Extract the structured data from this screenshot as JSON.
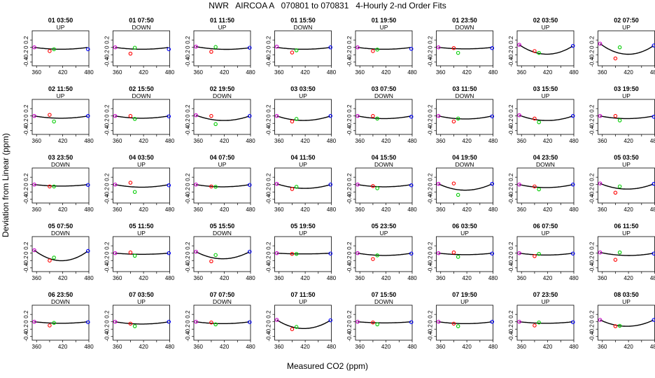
{
  "title": "NWR   AIRCOA A   070801 to 070831   4-Hourly 2-nd Order Fits",
  "xlabel": "Measured CO2 (ppm)",
  "ylabel": "Deviation from Linear (ppm)",
  "colors": {
    "curve": "#000000",
    "measured_low": "#ff0000",
    "measured_mid": "#00cc00",
    "endpoint": "#0000ff",
    "ref": "#cc00cc"
  },
  "chart_data": {
    "type": "scatter",
    "layout": "grid-5x8",
    "xlim": [
      350,
      480
    ],
    "ylim": [
      -0.5,
      0.45
    ],
    "x_ticks": [
      360,
      420,
      480
    ],
    "x_minor_ticks": [
      390,
      450
    ],
    "y_ticks": [
      0.2,
      0,
      -0.2,
      -0.4
    ],
    "y_tick_labels": [
      "0.2",
      "0",
      "-0.2",
      "-0.4"
    ],
    "panels": [
      {
        "title": "01 03:50",
        "dir": "UP",
        "curve": [
          0,
          -0.05,
          0
        ],
        "points": [
          [
            355,
            0
          ],
          [
            390,
            -0.1
          ],
          [
            400,
            -0.05
          ],
          [
            478,
            -0.05
          ]
        ]
      },
      {
        "title": "01 07:50",
        "dir": "DOWN",
        "curve": [
          0,
          -0.05,
          0
        ],
        "points": [
          [
            355,
            0
          ],
          [
            390,
            -0.17
          ],
          [
            400,
            -0.01
          ],
          [
            478,
            -0.05
          ]
        ]
      },
      {
        "title": "01 11:50",
        "dir": "UP",
        "curve": [
          0.02,
          -0.05,
          -0.01
        ],
        "points": [
          [
            355,
            0.02
          ],
          [
            390,
            -0.12
          ],
          [
            400,
            0.01
          ],
          [
            478,
            -0.01
          ]
        ]
      },
      {
        "title": "01 15:50",
        "dir": "DOWN",
        "curve": [
          0,
          -0.05,
          0
        ],
        "points": [
          [
            355,
            0.02
          ],
          [
            390,
            -0.14
          ],
          [
            400,
            -0.08
          ],
          [
            478,
            0
          ]
        ]
      },
      {
        "title": "01 19:50",
        "dir": "UP",
        "curve": [
          0,
          -0.05,
          0
        ],
        "points": [
          [
            355,
            0
          ],
          [
            390,
            -0.1
          ],
          [
            400,
            -0.06
          ],
          [
            478,
            -0.04
          ]
        ]
      },
      {
        "title": "01 23:50",
        "dir": "DOWN",
        "curve": [
          0,
          -0.04,
          0
        ],
        "points": [
          [
            355,
            0
          ],
          [
            390,
            -0.02
          ],
          [
            400,
            -0.15
          ],
          [
            478,
            -0.02
          ]
        ]
      },
      {
        "title": "02 03:50",
        "dir": "UP",
        "curve": [
          0.07,
          -0.18,
          0.04
        ],
        "points": [
          [
            355,
            0.07
          ],
          [
            390,
            -0.1
          ],
          [
            400,
            -0.15
          ],
          [
            478,
            0.04
          ]
        ]
      },
      {
        "title": "02 07:50",
        "dir": "UP",
        "curve": [
          0.1,
          -0.18,
          0.05
        ],
        "points": [
          [
            355,
            0.1
          ],
          [
            390,
            -0.3
          ],
          [
            400,
            0
          ],
          [
            478,
            0.05
          ]
        ]
      },
      {
        "title": "02 11:50",
        "dir": "UP",
        "curve": [
          0,
          -0.06,
          0
        ],
        "points": [
          [
            355,
            0
          ],
          [
            390,
            0.03
          ],
          [
            400,
            -0.15
          ],
          [
            478,
            0
          ]
        ]
      },
      {
        "title": "02 15:50",
        "dir": "DOWN",
        "curve": [
          0,
          -0.06,
          0
        ],
        "points": [
          [
            355,
            0
          ],
          [
            390,
            0
          ],
          [
            400,
            -0.08
          ],
          [
            478,
            -0.01
          ]
        ]
      },
      {
        "title": "02 19:50",
        "dir": "DOWN",
        "curve": [
          0.02,
          -0.12,
          0
        ],
        "points": [
          [
            355,
            0.02
          ],
          [
            390,
            0
          ],
          [
            400,
            -0.22
          ],
          [
            478,
            0
          ]
        ]
      },
      {
        "title": "03 03:50",
        "dir": "UP",
        "curve": [
          0,
          -0.12,
          0
        ],
        "points": [
          [
            355,
            0
          ],
          [
            390,
            -0.15
          ],
          [
            400,
            -0.08
          ],
          [
            478,
            0
          ]
        ]
      },
      {
        "title": "03 07:50",
        "dir": "DOWN",
        "curve": [
          0,
          -0.07,
          0
        ],
        "points": [
          [
            355,
            0
          ],
          [
            390,
            0
          ],
          [
            400,
            -0.07
          ],
          [
            478,
            -0.02
          ]
        ]
      },
      {
        "title": "03 11:50",
        "dir": "DOWN",
        "curve": [
          0,
          -0.08,
          0
        ],
        "points": [
          [
            355,
            0
          ],
          [
            390,
            -0.15
          ],
          [
            400,
            -0.07
          ],
          [
            478,
            -0.01
          ]
        ]
      },
      {
        "title": "03 15:50",
        "dir": "UP",
        "curve": [
          0.02,
          -0.12,
          0
        ],
        "points": [
          [
            355,
            0.02
          ],
          [
            390,
            -0.07
          ],
          [
            400,
            -0.17
          ],
          [
            478,
            0
          ]
        ]
      },
      {
        "title": "03 19:50",
        "dir": "UP",
        "curve": [
          0,
          -0.07,
          0
        ],
        "points": [
          [
            355,
            0
          ],
          [
            390,
            0
          ],
          [
            400,
            -0.12
          ],
          [
            478,
            -0.02
          ]
        ]
      },
      {
        "title": "03 23:50",
        "dir": "DOWN",
        "curve": [
          0,
          -0.04,
          0
        ],
        "points": [
          [
            355,
            0
          ],
          [
            390,
            -0.05
          ],
          [
            400,
            -0.05
          ],
          [
            478,
            -0.01
          ]
        ]
      },
      {
        "title": "04 03:50",
        "dir": "UP",
        "curve": [
          0,
          -0.07,
          0
        ],
        "points": [
          [
            355,
            0
          ],
          [
            390,
            0.05
          ],
          [
            400,
            -0.2
          ],
          [
            478,
            -0.02
          ]
        ]
      },
      {
        "title": "04 07:50",
        "dir": "UP",
        "curve": [
          0,
          -0.06,
          0
        ],
        "points": [
          [
            355,
            0
          ],
          [
            390,
            -0.05
          ],
          [
            400,
            -0.06
          ],
          [
            478,
            -0.01
          ]
        ]
      },
      {
        "title": "04 11:50",
        "dir": "UP",
        "curve": [
          0.02,
          -0.1,
          0
        ],
        "points": [
          [
            355,
            0.02
          ],
          [
            390,
            -0.12
          ],
          [
            400,
            -0.06
          ],
          [
            478,
            0
          ]
        ]
      },
      {
        "title": "04 15:50",
        "dir": "DOWN",
        "curve": [
          0,
          -0.06,
          0
        ],
        "points": [
          [
            355,
            0
          ],
          [
            390,
            -0.04
          ],
          [
            400,
            -0.1
          ],
          [
            478,
            -0.02
          ]
        ]
      },
      {
        "title": "04 19:50",
        "dir": "DOWN",
        "curve": [
          0.02,
          -0.15,
          0.02
        ],
        "points": [
          [
            355,
            0.02
          ],
          [
            390,
            0.03
          ],
          [
            400,
            -0.28
          ],
          [
            478,
            0.02
          ]
        ]
      },
      {
        "title": "04 23:50",
        "dir": "DOWN",
        "curve": [
          0,
          -0.08,
          0
        ],
        "points": [
          [
            355,
            0
          ],
          [
            390,
            -0.05
          ],
          [
            400,
            -0.13
          ],
          [
            478,
            0
          ]
        ]
      },
      {
        "title": "05 03:50",
        "dir": "UP",
        "curve": [
          0.03,
          -0.12,
          0.02
        ],
        "points": [
          [
            355,
            0.03
          ],
          [
            390,
            -0.22
          ],
          [
            400,
            -0.05
          ],
          [
            478,
            0.02
          ]
        ]
      },
      {
        "title": "05 07:50",
        "dir": "DOWN",
        "curve": [
          0.08,
          -0.2,
          0.06
        ],
        "points": [
          [
            355,
            0.08
          ],
          [
            390,
            -0.2
          ],
          [
            400,
            -0.12
          ],
          [
            478,
            0.06
          ]
        ]
      },
      {
        "title": "05 11:50",
        "dir": "UP",
        "curve": [
          0,
          -0.03,
          0
        ],
        "points": [
          [
            355,
            0
          ],
          [
            390,
            0.02
          ],
          [
            400,
            -0.07
          ],
          [
            478,
            0
          ]
        ]
      },
      {
        "title": "05 15:50",
        "dir": "DOWN",
        "curve": [
          0.04,
          -0.15,
          0.04
        ],
        "points": [
          [
            355,
            0.04
          ],
          [
            390,
            -0.22
          ],
          [
            400,
            -0.05
          ],
          [
            478,
            0.04
          ]
        ]
      },
      {
        "title": "05 19:50",
        "dir": "UP",
        "curve": [
          0,
          -0.02,
          0
        ],
        "points": [
          [
            355,
            0
          ],
          [
            390,
            -0.02
          ],
          [
            400,
            -0.02
          ],
          [
            478,
            -0.01
          ]
        ]
      },
      {
        "title": "05 23:50",
        "dir": "UP",
        "curve": [
          0,
          -0.06,
          0
        ],
        "points": [
          [
            355,
            0
          ],
          [
            390,
            -0.16
          ],
          [
            400,
            -0.06
          ],
          [
            478,
            -0.01
          ]
        ]
      },
      {
        "title": "06 03:50",
        "dir": "UP",
        "curve": [
          0,
          -0.04,
          0
        ],
        "points": [
          [
            355,
            0
          ],
          [
            390,
            0.02
          ],
          [
            400,
            -0.1
          ],
          [
            478,
            -0.01
          ]
        ]
      },
      {
        "title": "06 07:50",
        "dir": "UP",
        "curve": [
          0,
          -0.05,
          0
        ],
        "points": [
          [
            355,
            0
          ],
          [
            390,
            -0.08
          ],
          [
            400,
            -0.02
          ],
          [
            478,
            -0.01
          ]
        ]
      },
      {
        "title": "06 11:50",
        "dir": "UP",
        "curve": [
          0.02,
          -0.06,
          0
        ],
        "points": [
          [
            355,
            0.02
          ],
          [
            390,
            -0.18
          ],
          [
            400,
            0.02
          ],
          [
            478,
            -0.01
          ]
        ]
      },
      {
        "title": "06 23:50",
        "dir": "DOWN",
        "curve": [
          0,
          -0.04,
          0
        ],
        "points": [
          [
            355,
            0
          ],
          [
            390,
            -0.1
          ],
          [
            400,
            -0.03
          ],
          [
            478,
            -0.01
          ]
        ]
      },
      {
        "title": "07 03:50",
        "dir": "UP",
        "curve": [
          0,
          -0.06,
          0
        ],
        "points": [
          [
            355,
            0
          ],
          [
            390,
            -0.05
          ],
          [
            400,
            -0.12
          ],
          [
            478,
            0
          ]
        ]
      },
      {
        "title": "07 07:50",
        "dir": "DOWN",
        "curve": [
          0,
          -0.05,
          0
        ],
        "points": [
          [
            355,
            0
          ],
          [
            390,
            -0.02
          ],
          [
            400,
            -0.07
          ],
          [
            478,
            -0.01
          ]
        ]
      },
      {
        "title": "07 11:50",
        "dir": "UP",
        "curve": [
          0.05,
          -0.18,
          0.04
        ],
        "points": [
          [
            355,
            0.05
          ],
          [
            390,
            -0.2
          ],
          [
            400,
            -0.14
          ],
          [
            478,
            0.04
          ]
        ]
      },
      {
        "title": "07 15:50",
        "dir": "DOWN",
        "curve": [
          0,
          -0.03,
          0
        ],
        "points": [
          [
            355,
            0
          ],
          [
            390,
            -0.02
          ],
          [
            400,
            -0.07
          ],
          [
            478,
            -0.01
          ]
        ]
      },
      {
        "title": "07 19:50",
        "dir": "UP",
        "curve": [
          0,
          -0.05,
          0
        ],
        "points": [
          [
            355,
            0
          ],
          [
            390,
            -0.05
          ],
          [
            400,
            -0.12
          ],
          [
            478,
            0
          ]
        ]
      },
      {
        "title": "07 23:50",
        "dir": "UP",
        "curve": [
          0,
          -0.04,
          0
        ],
        "points": [
          [
            355,
            0
          ],
          [
            390,
            -0.1
          ],
          [
            400,
            -0.02
          ],
          [
            478,
            -0.01
          ]
        ]
      },
      {
        "title": "08 03:50",
        "dir": "UP",
        "curve": [
          0.05,
          -0.12,
          0.05
        ],
        "points": [
          [
            355,
            0.05
          ],
          [
            390,
            -0.12
          ],
          [
            400,
            -0.11
          ],
          [
            478,
            0.05
          ]
        ]
      }
    ]
  }
}
